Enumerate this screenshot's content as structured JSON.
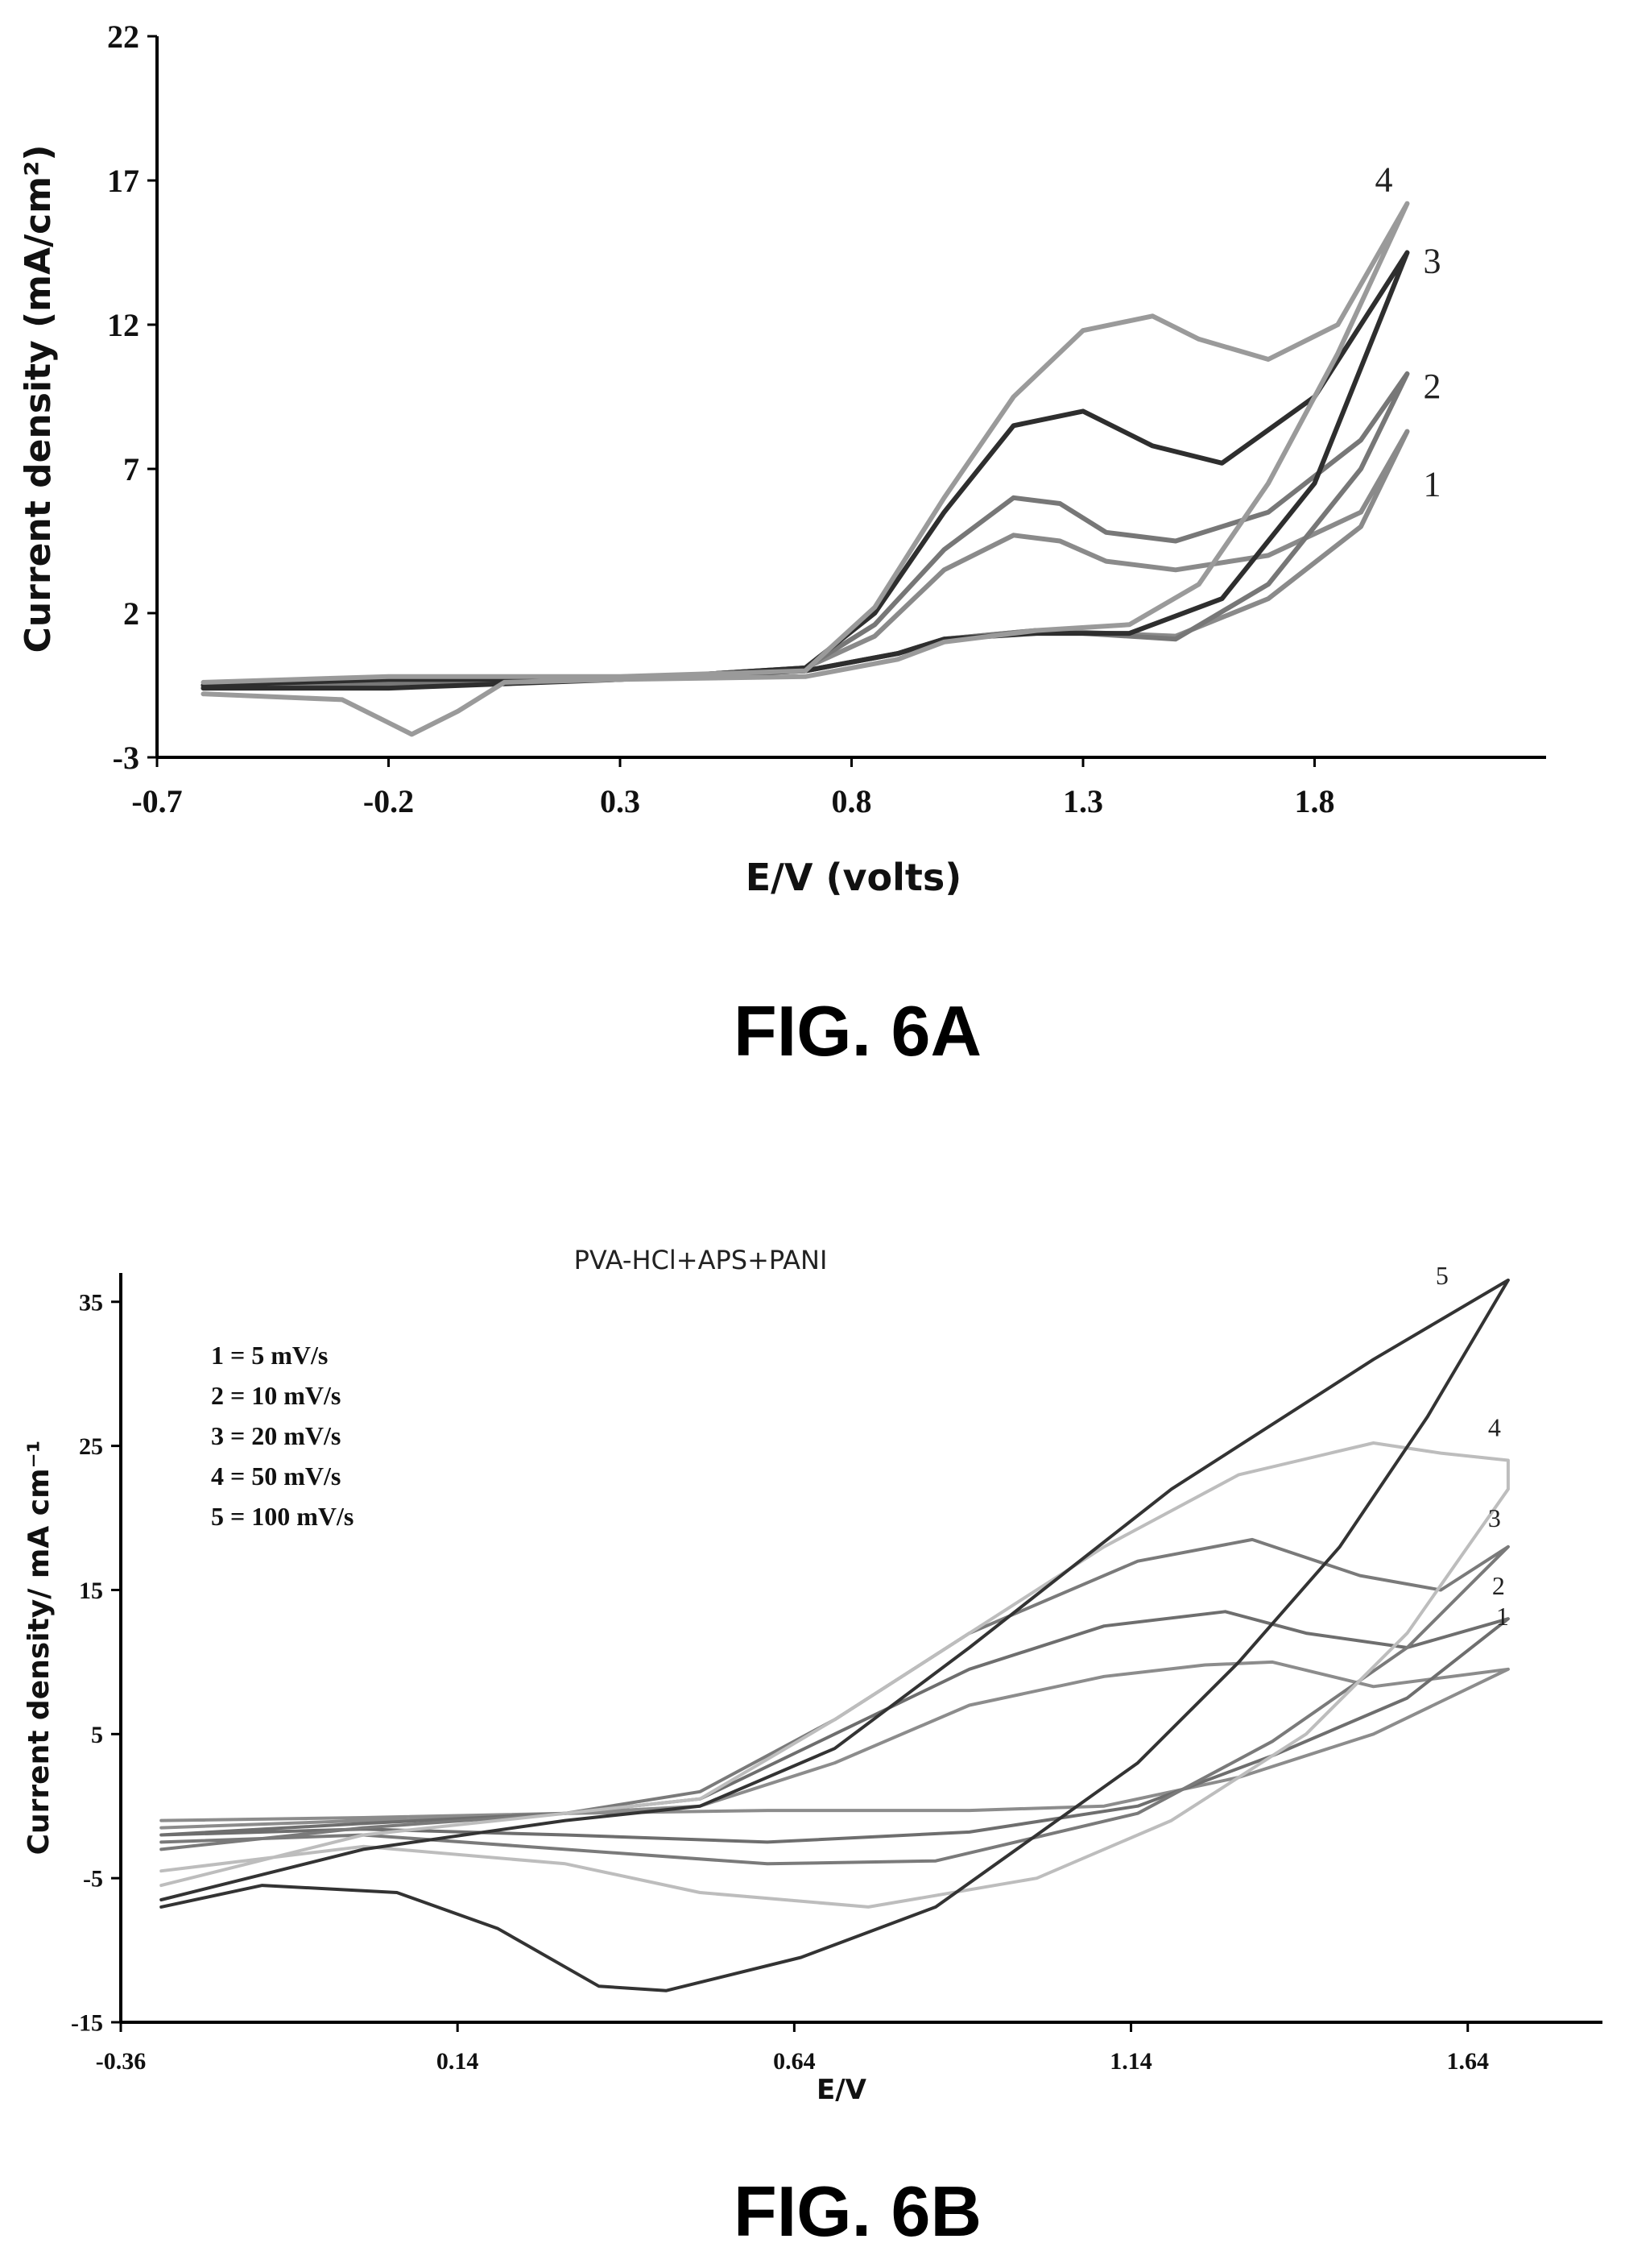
{
  "figures": [
    {
      "caption": "FIG. 6A",
      "chart_data": {
        "type": "line",
        "title": "",
        "xlabel": "E/V (volts)",
        "ylabel": "Current density (mA/cm²)",
        "xlim": [
          -0.7,
          2.3
        ],
        "ylim": [
          -3,
          22
        ],
        "xticks": [
          "-0.7",
          "-0.2",
          "0.3",
          "0.8",
          "1.3",
          "1.8"
        ],
        "yticks": [
          "-3",
          "2",
          "7",
          "12",
          "17",
          "22"
        ],
        "grid": false,
        "series": [
          {
            "label": "1",
            "color": "#8a8a8a",
            "points": [
              [
                -0.6,
                -0.6
              ],
              [
                -0.2,
                -0.5
              ],
              [
                0.3,
                -0.3
              ],
              [
                0.7,
                0.0
              ],
              [
                0.9,
                0.6
              ],
              [
                1.0,
                1.1
              ],
              [
                1.2,
                1.4
              ],
              [
                1.5,
                1.2
              ],
              [
                1.7,
                2.5
              ],
              [
                1.9,
                5.0
              ],
              [
                2.0,
                8.3
              ],
              [
                1.9,
                5.5
              ],
              [
                1.7,
                4.0
              ],
              [
                1.5,
                3.5
              ],
              [
                1.35,
                3.8
              ],
              [
                1.25,
                4.5
              ],
              [
                1.15,
                4.7
              ],
              [
                1.0,
                3.5
              ],
              [
                0.85,
                1.2
              ],
              [
                0.7,
                0.1
              ],
              [
                0.3,
                -0.3
              ],
              [
                -0.2,
                -0.35
              ],
              [
                -0.6,
                -0.5
              ]
            ]
          },
          {
            "label": "2",
            "color": "#777777",
            "points": [
              [
                -0.6,
                -0.6
              ],
              [
                -0.2,
                -0.5
              ],
              [
                0.3,
                -0.3
              ],
              [
                0.7,
                0.0
              ],
              [
                0.9,
                0.6
              ],
              [
                1.0,
                1.1
              ],
              [
                1.2,
                1.4
              ],
              [
                1.5,
                1.1
              ],
              [
                1.7,
                3.0
              ],
              [
                1.9,
                7.0
              ],
              [
                2.0,
                10.3
              ],
              [
                1.9,
                8.0
              ],
              [
                1.7,
                5.5
              ],
              [
                1.5,
                4.5
              ],
              [
                1.35,
                4.8
              ],
              [
                1.25,
                5.8
              ],
              [
                1.15,
                6.0
              ],
              [
                1.0,
                4.2
              ],
              [
                0.85,
                1.6
              ],
              [
                0.7,
                0.1
              ],
              [
                0.3,
                -0.3
              ],
              [
                -0.2,
                -0.35
              ],
              [
                -0.6,
                -0.5
              ]
            ]
          },
          {
            "label": "3",
            "color": "#2e2e2e",
            "points": [
              [
                -0.6,
                -0.6
              ],
              [
                -0.2,
                -0.6
              ],
              [
                0.3,
                -0.3
              ],
              [
                0.7,
                0.0
              ],
              [
                0.9,
                0.6
              ],
              [
                1.0,
                1.1
              ],
              [
                1.2,
                1.3
              ],
              [
                1.4,
                1.3
              ],
              [
                1.6,
                2.5
              ],
              [
                1.8,
                6.5
              ],
              [
                2.0,
                14.5
              ],
              [
                1.8,
                9.5
              ],
              [
                1.6,
                7.2
              ],
              [
                1.45,
                7.8
              ],
              [
                1.3,
                9.0
              ],
              [
                1.15,
                8.5
              ],
              [
                1.0,
                5.5
              ],
              [
                0.85,
                2.0
              ],
              [
                0.7,
                0.1
              ],
              [
                0.3,
                -0.3
              ],
              [
                -0.2,
                -0.3
              ],
              [
                -0.6,
                -0.5
              ]
            ]
          },
          {
            "label": "4",
            "color": "#9a9a9a",
            "points": [
              [
                -0.6,
                -0.8
              ],
              [
                -0.3,
                -1.0
              ],
              [
                -0.2,
                -1.8
              ],
              [
                -0.15,
                -2.2
              ],
              [
                -0.05,
                -1.4
              ],
              [
                0.05,
                -0.4
              ],
              [
                0.3,
                -0.3
              ],
              [
                0.7,
                -0.2
              ],
              [
                0.9,
                0.4
              ],
              [
                1.0,
                1.0
              ],
              [
                1.2,
                1.4
              ],
              [
                1.4,
                1.6
              ],
              [
                1.55,
                3.0
              ],
              [
                1.7,
                6.5
              ],
              [
                1.85,
                11.0
              ],
              [
                2.0,
                16.2
              ],
              [
                1.85,
                12.0
              ],
              [
                1.7,
                10.8
              ],
              [
                1.55,
                11.5
              ],
              [
                1.45,
                12.3
              ],
              [
                1.3,
                11.8
              ],
              [
                1.15,
                9.5
              ],
              [
                1.0,
                6.0
              ],
              [
                0.85,
                2.2
              ],
              [
                0.7,
                0.0
              ],
              [
                0.3,
                -0.2
              ],
              [
                -0.2,
                -0.2
              ],
              [
                -0.6,
                -0.4
              ]
            ]
          }
        ],
        "curve_labels": [
          "1",
          "2",
          "3",
          "4"
        ]
      }
    },
    {
      "caption": "FIG. 6B",
      "chart_data": {
        "type": "line",
        "title": "PVA-HCl+APS+PANI",
        "xlabel": "E/V",
        "ylabel": "Current density/ mA cm⁻¹",
        "xlim": [
          -0.36,
          1.84
        ],
        "ylim": [
          -15,
          37
        ],
        "xticks": [
          "-0.36",
          "0.14",
          "0.64",
          "1.14",
          "1.64"
        ],
        "yticks": [
          "-15",
          "-5",
          "5",
          "15",
          "25",
          "35"
        ],
        "grid": false,
        "legend": [
          "1 = 5 mV/s",
          "2 = 10 mV/s",
          "3 = 20 mV/s",
          "4 = 50 mV/s",
          "5 = 100 mV/s"
        ],
        "legend_position": "top-left",
        "series": [
          {
            "label": "1",
            "color": "#8c8c8c",
            "points": [
              [
                -0.3,
                -1.0
              ],
              [
                0.0,
                -0.8
              ],
              [
                0.3,
                -0.5
              ],
              [
                0.6,
                -0.3
              ],
              [
                0.9,
                -0.3
              ],
              [
                1.1,
                0.0
              ],
              [
                1.3,
                2.0
              ],
              [
                1.5,
                5.0
              ],
              [
                1.7,
                9.5
              ],
              [
                1.5,
                8.3
              ],
              [
                1.35,
                10.0
              ],
              [
                1.25,
                9.8
              ],
              [
                1.1,
                9.0
              ],
              [
                0.9,
                7.0
              ],
              [
                0.7,
                3.0
              ],
              [
                0.5,
                0.0
              ],
              [
                0.3,
                -0.5
              ],
              [
                0.0,
                -1.0
              ],
              [
                -0.3,
                -1.5
              ]
            ]
          },
          {
            "label": "2",
            "color": "#6e6e6e",
            "points": [
              [
                -0.3,
                -2.0
              ],
              [
                0.0,
                -1.6
              ],
              [
                0.3,
                -2.0
              ],
              [
                0.6,
                -2.5
              ],
              [
                0.9,
                -1.8
              ],
              [
                1.15,
                0.0
              ],
              [
                1.35,
                3.5
              ],
              [
                1.55,
                7.5
              ],
              [
                1.7,
                13.0
              ],
              [
                1.55,
                11.0
              ],
              [
                1.4,
                12.0
              ],
              [
                1.28,
                13.5
              ],
              [
                1.1,
                12.5
              ],
              [
                0.9,
                9.5
              ],
              [
                0.7,
                5.0
              ],
              [
                0.5,
                0.5
              ],
              [
                0.3,
                -0.5
              ],
              [
                0.0,
                -1.2
              ],
              [
                -0.3,
                -2.0
              ]
            ]
          },
          {
            "label": "3",
            "color": "#7a7a7a",
            "points": [
              [
                -0.3,
                -2.5
              ],
              [
                0.0,
                -2.0
              ],
              [
                0.3,
                -3.0
              ],
              [
                0.6,
                -4.0
              ],
              [
                0.85,
                -3.8
              ],
              [
                1.15,
                -0.5
              ],
              [
                1.35,
                4.5
              ],
              [
                1.55,
                11.0
              ],
              [
                1.7,
                18.0
              ],
              [
                1.6,
                15.0
              ],
              [
                1.48,
                16.0
              ],
              [
                1.32,
                18.5
              ],
              [
                1.15,
                17.0
              ],
              [
                0.9,
                12.0
              ],
              [
                0.7,
                6.0
              ],
              [
                0.5,
                1.0
              ],
              [
                0.3,
                -0.5
              ],
              [
                0.0,
                -1.5
              ],
              [
                -0.3,
                -3.0
              ]
            ]
          },
          {
            "label": "4",
            "color": "#bdbdbd",
            "points": [
              [
                -0.3,
                -4.5
              ],
              [
                0.0,
                -2.8
              ],
              [
                0.3,
                -4.0
              ],
              [
                0.5,
                -6.0
              ],
              [
                0.75,
                -7.0
              ],
              [
                1.0,
                -5.0
              ],
              [
                1.2,
                -1.0
              ],
              [
                1.4,
                5.0
              ],
              [
                1.55,
                12.0
              ],
              [
                1.7,
                22.0
              ],
              [
                1.7,
                24.0
              ],
              [
                1.6,
                24.5
              ],
              [
                1.5,
                25.2
              ],
              [
                1.3,
                23.0
              ],
              [
                1.1,
                18.0
              ],
              [
                0.9,
                12.0
              ],
              [
                0.7,
                6.0
              ],
              [
                0.5,
                0.5
              ],
              [
                0.3,
                -0.5
              ],
              [
                0.0,
                -2.0
              ],
              [
                -0.3,
                -5.5
              ]
            ]
          },
          {
            "label": "5",
            "color": "#333333",
            "points": [
              [
                -0.3,
                -7.0
              ],
              [
                -0.15,
                -5.5
              ],
              [
                0.05,
                -6.0
              ],
              [
                0.2,
                -8.5
              ],
              [
                0.35,
                -12.5
              ],
              [
                0.45,
                -12.8
              ],
              [
                0.65,
                -10.5
              ],
              [
                0.85,
                -7.0
              ],
              [
                1.0,
                -2.0
              ],
              [
                1.15,
                3.0
              ],
              [
                1.3,
                10.0
              ],
              [
                1.45,
                18.0
              ],
              [
                1.58,
                27.0
              ],
              [
                1.7,
                36.5
              ],
              [
                1.5,
                31.0
              ],
              [
                1.2,
                22.0
              ],
              [
                0.9,
                11.0
              ],
              [
                0.7,
                4.0
              ],
              [
                0.5,
                0.0
              ],
              [
                0.3,
                -1.0
              ],
              [
                0.0,
                -3.0
              ],
              [
                -0.3,
                -6.5
              ]
            ]
          }
        ],
        "curve_labels": [
          "1",
          "2",
          "3",
          "4",
          "5"
        ]
      }
    }
  ]
}
